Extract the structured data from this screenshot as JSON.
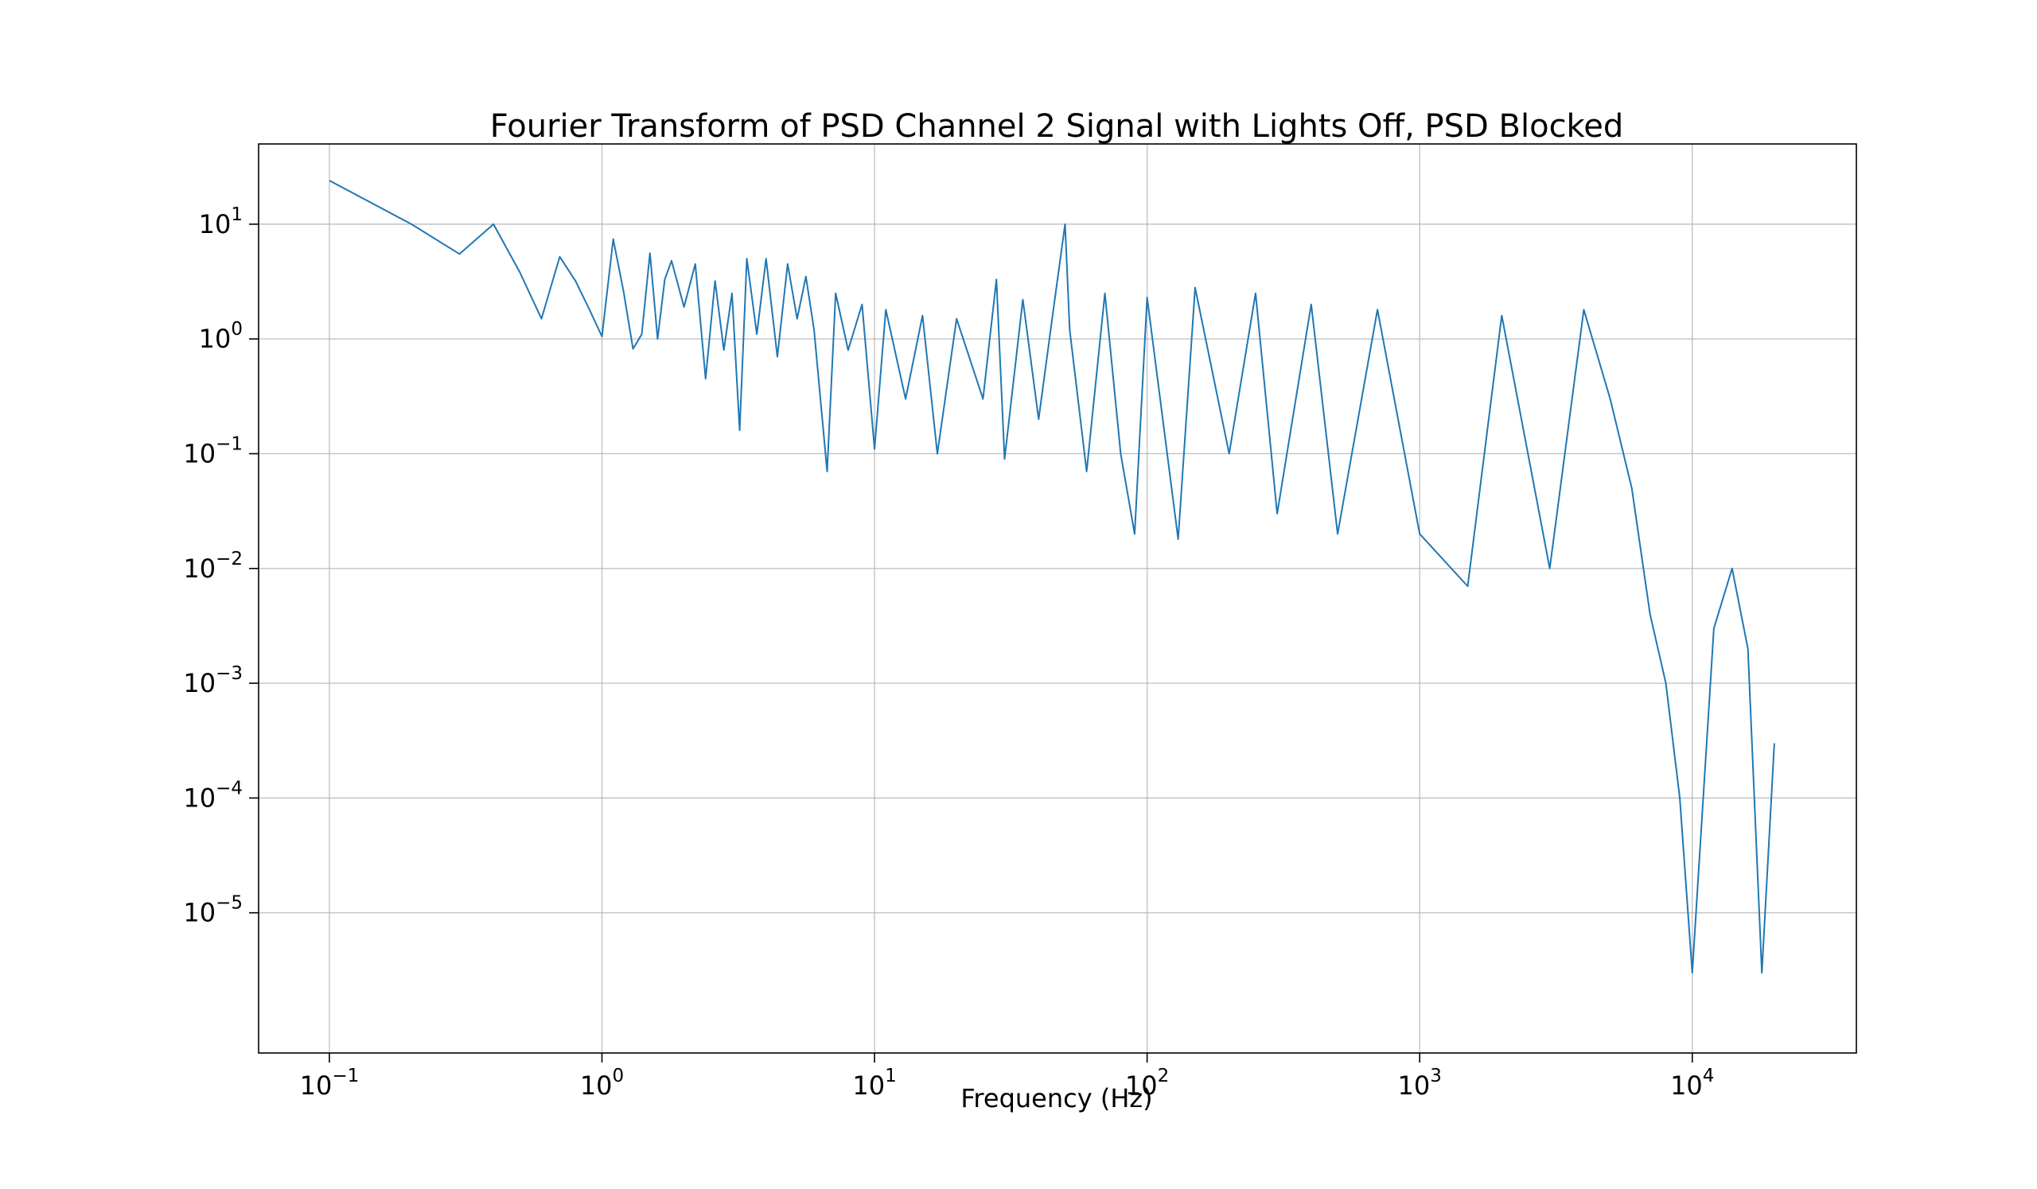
{
  "chart_data": {
    "type": "line",
    "title": "Fourier Transform of PSD Channel 2 Signal with Lights Off, PSD Blocked",
    "xlabel": "Frequency (Hz)",
    "ylabel": "",
    "xscale": "log",
    "yscale": "log",
    "xlim": [
      0.055,
      40000
    ],
    "ylim": [
      6e-07,
      50
    ],
    "grid": true,
    "color": "#1f77b4",
    "x_ticks": [
      {
        "base": "10",
        "exp": "−1"
      },
      {
        "base": "10",
        "exp": "0"
      },
      {
        "base": "10",
        "exp": "1"
      },
      {
        "base": "10",
        "exp": "2"
      },
      {
        "base": "10",
        "exp": "3"
      },
      {
        "base": "10",
        "exp": "4"
      }
    ],
    "x_tick_values": [
      0.1,
      1,
      10,
      100,
      1000,
      10000
    ],
    "y_ticks": [
      {
        "base": "10",
        "exp": "−5"
      },
      {
        "base": "10",
        "exp": "−4"
      },
      {
        "base": "10",
        "exp": "−3"
      },
      {
        "base": "10",
        "exp": "−2"
      },
      {
        "base": "10",
        "exp": "−1"
      },
      {
        "base": "10",
        "exp": "0"
      },
      {
        "base": "10",
        "exp": "1"
      }
    ],
    "y_tick_values": [
      1e-05,
      0.0001,
      0.001,
      0.01,
      0.1,
      1,
      10
    ],
    "series": [
      {
        "points": [
          [
            0.1,
            24
          ],
          [
            0.2,
            10
          ],
          [
            0.3,
            5.5
          ],
          [
            0.4,
            10
          ],
          [
            0.5,
            3.8
          ],
          [
            0.6,
            1.5
          ],
          [
            0.7,
            5.2
          ],
          [
            0.8,
            3.2
          ],
          [
            0.9,
            1.8
          ],
          [
            1.0,
            1.05
          ],
          [
            1.1,
            7.4
          ],
          [
            1.2,
            2.6
          ],
          [
            1.3,
            0.82
          ],
          [
            1.4,
            1.1
          ],
          [
            1.5,
            5.6
          ],
          [
            1.6,
            1.0
          ],
          [
            1.7,
            3.3
          ],
          [
            1.8,
            4.8
          ],
          [
            2.0,
            1.9
          ],
          [
            2.2,
            4.5
          ],
          [
            2.4,
            0.45
          ],
          [
            2.6,
            3.2
          ],
          [
            2.8,
            0.8
          ],
          [
            3.0,
            2.5
          ],
          [
            3.2,
            0.16
          ],
          [
            3.4,
            5.0
          ],
          [
            3.7,
            1.1
          ],
          [
            4.0,
            5.0
          ],
          [
            4.4,
            0.7
          ],
          [
            4.8,
            4.5
          ],
          [
            5.2,
            1.5
          ],
          [
            5.6,
            3.5
          ],
          [
            6.0,
            1.2
          ],
          [
            6.7,
            0.07
          ],
          [
            7.2,
            2.5
          ],
          [
            8.0,
            0.8
          ],
          [
            9.0,
            2.0
          ],
          [
            10.0,
            0.11
          ],
          [
            11.0,
            1.8
          ],
          [
            13.0,
            0.3
          ],
          [
            15.0,
            1.6
          ],
          [
            17.0,
            0.1
          ],
          [
            20.0,
            1.5
          ],
          [
            25.0,
            0.3
          ],
          [
            28.0,
            3.3
          ],
          [
            30.0,
            0.09
          ],
          [
            35.0,
            2.2
          ],
          [
            40.0,
            0.2
          ],
          [
            45.0,
            1.6
          ],
          [
            50.0,
            10
          ],
          [
            52.0,
            1.2
          ],
          [
            60.0,
            0.07
          ],
          [
            70.0,
            2.5
          ],
          [
            80.0,
            0.1
          ],
          [
            90.0,
            0.02
          ],
          [
            100.0,
            2.3
          ],
          [
            130.0,
            0.018
          ],
          [
            150.0,
            2.8
          ],
          [
            200.0,
            0.1
          ],
          [
            250.0,
            2.5
          ],
          [
            300.0,
            0.03
          ],
          [
            400.0,
            2.0
          ],
          [
            500.0,
            0.02
          ],
          [
            700.0,
            1.8
          ],
          [
            1000.0,
            0.02
          ],
          [
            1500.0,
            0.007
          ],
          [
            2000.0,
            1.6
          ],
          [
            3000.0,
            0.01
          ],
          [
            4000.0,
            1.8
          ],
          [
            5000.0,
            0.3
          ],
          [
            6000.0,
            0.05
          ],
          [
            7000.0,
            0.004
          ],
          [
            8000.0,
            0.001
          ],
          [
            9000.0,
            0.0001
          ],
          [
            10000.0,
            3e-06
          ],
          [
            12000.0,
            0.003
          ],
          [
            14000.0,
            0.01
          ],
          [
            16000.0,
            0.002
          ],
          [
            18000.0,
            3e-06
          ],
          [
            20000.0,
            0.0003
          ]
        ]
      }
    ]
  }
}
